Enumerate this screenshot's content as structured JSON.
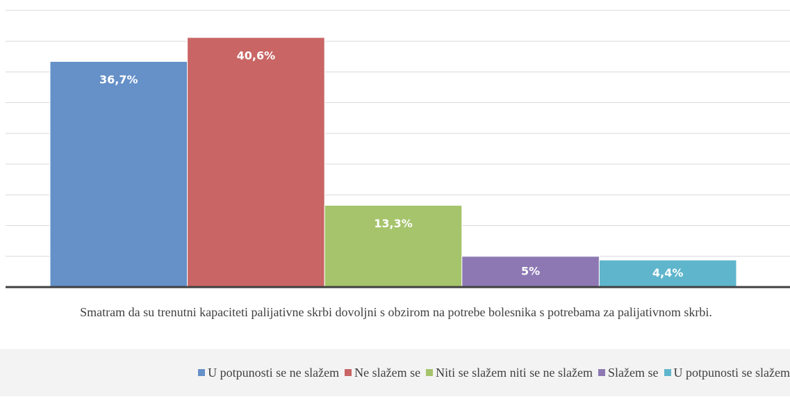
{
  "chart_data": {
    "type": "bar",
    "categories": [
      "U potpunosti se ne slažem",
      "Ne slažem se",
      "Niti se slažem niti se ne slažem",
      "Slažem se",
      "U potpunosti se slažem"
    ],
    "values": [
      36.7,
      40.6,
      13.3,
      5,
      4.4
    ],
    "value_labels": [
      "36,7%",
      "40,6%",
      "13,3%",
      "5%",
      "4,4%"
    ],
    "colors": [
      "#6590c8",
      "#c96565",
      "#a6c46c",
      "#8d78b4",
      "#5fb6cc"
    ],
    "xlabel": "Smatram da su trenutni kapaciteti palijativne skrbi dovoljni s obzirom na potrebe bolesnika s potrebama za palijativnom skrbi.",
    "ylim": [
      0,
      45
    ],
    "yticks": [
      0,
      5,
      10,
      15,
      20,
      25,
      30,
      35,
      40,
      45
    ],
    "grid": true,
    "legend": "bottom"
  }
}
